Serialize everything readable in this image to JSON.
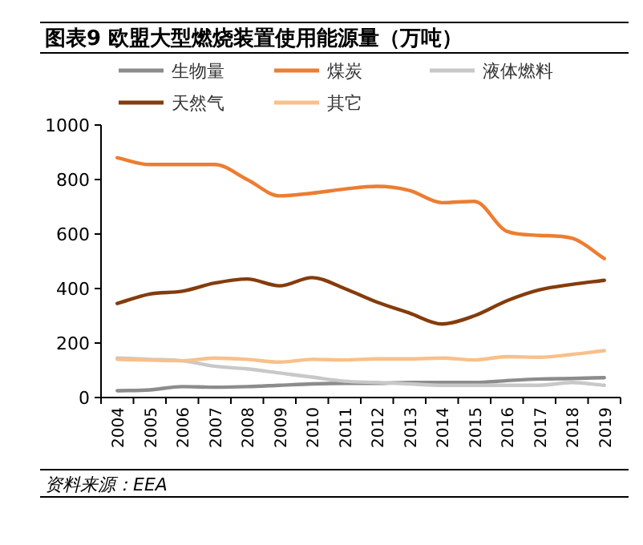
{
  "chart_data": {
    "type": "line",
    "title": "图表9    欧盟大型燃烧装置使用能源量（万吨）",
    "categories": [
      "2004",
      "2005",
      "2006",
      "2007",
      "2008",
      "2009",
      "2010",
      "2011",
      "2012",
      "2013",
      "2014",
      "2015",
      "2016",
      "2017",
      "2018",
      "2019"
    ],
    "series": [
      {
        "name": "生物量",
        "color": "#8c8c8c",
        "values": [
          25,
          28,
          40,
          38,
          40,
          45,
          50,
          52,
          52,
          55,
          55,
          55,
          62,
          68,
          70,
          73
        ]
      },
      {
        "name": "煤炭",
        "color": "#ed7d31",
        "values": [
          880,
          855,
          855,
          855,
          800,
          740,
          750,
          765,
          775,
          760,
          715,
          720,
          610,
          595,
          585,
          510
        ]
      },
      {
        "name": "液体燃料",
        "color": "#c8c8c8",
        "values": [
          145,
          140,
          135,
          115,
          105,
          90,
          75,
          60,
          55,
          50,
          45,
          45,
          45,
          45,
          55,
          45
        ]
      },
      {
        "name": "天然气",
        "color": "#843c0c",
        "values": [
          345,
          380,
          390,
          420,
          435,
          410,
          440,
          400,
          350,
          310,
          270,
          300,
          355,
          395,
          415,
          430
        ]
      },
      {
        "name": "其它",
        "color": "#f8c08a",
        "values": [
          140,
          137,
          135,
          145,
          140,
          130,
          140,
          138,
          142,
          142,
          145,
          138,
          150,
          148,
          158,
          172
        ]
      }
    ],
    "ylim": [
      0,
      1000
    ],
    "yticks": [
      0,
      200,
      400,
      600,
      800,
      1000
    ],
    "legend": "top",
    "grid": false,
    "annotations": [
      "资料来源：EEA"
    ]
  }
}
